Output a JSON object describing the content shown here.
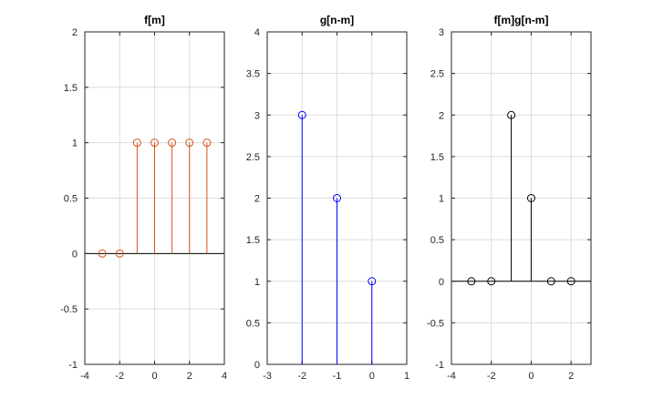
{
  "chart_data": [
    {
      "type": "stem",
      "title": "f[m]",
      "color": "#D95319",
      "x": [
        -3,
        -2,
        -1,
        0,
        1,
        2,
        3
      ],
      "y": [
        0,
        0,
        1,
        1,
        1,
        1,
        1
      ],
      "xlim": [
        -4,
        4
      ],
      "ylim": [
        -1,
        2
      ],
      "xticks": [
        -4,
        -2,
        0,
        2,
        4
      ],
      "yticks": [
        -1,
        -0.5,
        0,
        0.5,
        1,
        1.5,
        2
      ],
      "xticklabels": [
        "-4",
        "-2",
        "0",
        "2",
        "4"
      ],
      "yticklabels": [
        "-1",
        "-0.5",
        "0",
        "0.5",
        "1",
        "1.5",
        "2"
      ],
      "baseline": 0,
      "grid": true
    },
    {
      "type": "stem",
      "title": "g[n-m]",
      "color": "#0000FF",
      "x": [
        -2,
        -1,
        0
      ],
      "y": [
        3,
        2,
        1
      ],
      "xlim": [
        -3,
        1
      ],
      "ylim": [
        0,
        4
      ],
      "xticks": [
        -3,
        -2,
        -1,
        0,
        1
      ],
      "yticks": [
        0,
        0.5,
        1,
        1.5,
        2,
        2.5,
        3,
        3.5,
        4
      ],
      "xticklabels": [
        "-3",
        "-2",
        "-1",
        "0",
        "1"
      ],
      "yticklabels": [
        "0",
        "0.5",
        "1",
        "1.5",
        "2",
        "2.5",
        "3",
        "3.5",
        "4"
      ],
      "baseline": 0,
      "grid": true
    },
    {
      "type": "stem",
      "title": "f[m]g[n-m]",
      "color": "#000000",
      "x": [
        -3,
        -2,
        -1,
        0,
        1,
        2
      ],
      "y": [
        0,
        0,
        2,
        1,
        0,
        0
      ],
      "xlim": [
        -4,
        3
      ],
      "ylim": [
        -1,
        3
      ],
      "xticks": [
        -4,
        -2,
        0,
        2
      ],
      "yticks": [
        -1,
        -0.5,
        0,
        0.5,
        1,
        1.5,
        2,
        2.5,
        3
      ],
      "xticklabels": [
        "-4",
        "-2",
        "0",
        "2"
      ],
      "yticklabels": [
        "-1",
        "-0.5",
        "0",
        "0.5",
        "1",
        "1.5",
        "2",
        "2.5",
        "3"
      ],
      "baseline": 0,
      "grid": true
    }
  ]
}
